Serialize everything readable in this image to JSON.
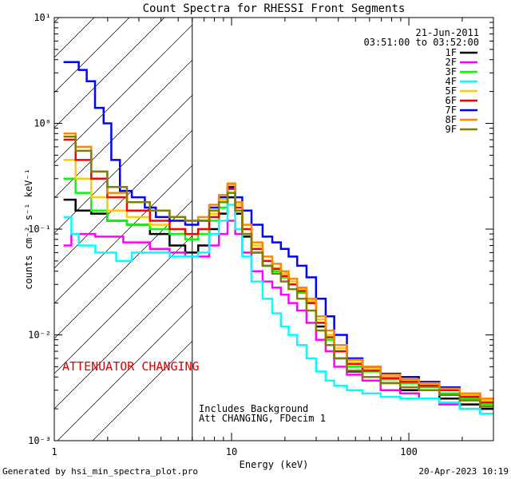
{
  "chart_data": {
    "type": "line",
    "title": "Count Spectra for RHESSI Front Segments",
    "xlabel": "Energy (keV)",
    "ylabel": "counts cm⁻² s⁻¹ keV⁻¹",
    "xscale": "log",
    "yscale": "log",
    "xlim": [
      1,
      300
    ],
    "ylim": [
      0.001,
      10
    ],
    "x_ticks": [
      {
        "value": 1,
        "label": "1"
      },
      {
        "value": 10,
        "label": "10"
      },
      {
        "value": 100,
        "label": "100"
      }
    ],
    "y_ticks": [
      {
        "value": 0.001,
        "label": "10⁻³"
      },
      {
        "value": 0.01,
        "label": "10⁻²"
      },
      {
        "value": 0.1,
        "label": "10⁻¹"
      },
      {
        "value": 1,
        "label": "10⁰"
      },
      {
        "value": 10,
        "label": "10¹"
      }
    ],
    "date": "21-Jun-2011",
    "time_range": "03:51:00 to 03:52:00",
    "attenuator_label": "ATTENUATOR CHANGING",
    "note_lines": [
      "Includes Background",
      "Att CHANGING, FDecim 1"
    ],
    "hatched_region": {
      "x_from": 1,
      "x_to": 6
    },
    "legend_position": "top-right",
    "series": [
      {
        "name": "1F",
        "color": "#000000",
        "points": [
          [
            1.2,
            0.19
          ],
          [
            1.45,
            0.15
          ],
          [
            1.8,
            0.14
          ],
          [
            2.2,
            0.12
          ],
          [
            3,
            0.11
          ],
          [
            4,
            0.09
          ],
          [
            5,
            0.07
          ],
          [
            6,
            0.06
          ],
          [
            7,
            0.07
          ],
          [
            8,
            0.1
          ],
          [
            9,
            0.14
          ],
          [
            10,
            0.2
          ],
          [
            11,
            0.14
          ],
          [
            12,
            0.085
          ],
          [
            14,
            0.06
          ],
          [
            16,
            0.045
          ],
          [
            18,
            0.04
          ],
          [
            20,
            0.035
          ],
          [
            22,
            0.03
          ],
          [
            25,
            0.025
          ],
          [
            28,
            0.02
          ],
          [
            32,
            0.012
          ],
          [
            36,
            0.008
          ],
          [
            40,
            0.006
          ],
          [
            50,
            0.0045
          ],
          [
            60,
            0.004
          ],
          [
            80,
            0.0035
          ],
          [
            100,
            0.003
          ],
          [
            130,
            0.003
          ],
          [
            170,
            0.0025
          ],
          [
            220,
            0.0022
          ],
          [
            290,
            0.002
          ]
        ]
      },
      {
        "name": "2F",
        "color": "#ff00ff",
        "points": [
          [
            1.2,
            0.07
          ],
          [
            1.3,
            0.09
          ],
          [
            1.45,
            0.09
          ],
          [
            2,
            0.085
          ],
          [
            3,
            0.075
          ],
          [
            4,
            0.065
          ],
          [
            5,
            0.06
          ],
          [
            6,
            0.055
          ],
          [
            7,
            0.055
          ],
          [
            8,
            0.07
          ],
          [
            9,
            0.09
          ],
          [
            10,
            0.12
          ],
          [
            11,
            0.09
          ],
          [
            12,
            0.06
          ],
          [
            14,
            0.04
          ],
          [
            16,
            0.032
          ],
          [
            18,
            0.028
          ],
          [
            20,
            0.024
          ],
          [
            22,
            0.02
          ],
          [
            25,
            0.017
          ],
          [
            28,
            0.013
          ],
          [
            32,
            0.009
          ],
          [
            36,
            0.007
          ],
          [
            40,
            0.005
          ],
          [
            50,
            0.0042
          ],
          [
            60,
            0.0037
          ],
          [
            80,
            0.003
          ],
          [
            100,
            0.0028
          ],
          [
            130,
            0.0025
          ],
          [
            170,
            0.0022
          ],
          [
            220,
            0.002
          ],
          [
            290,
            0.0018
          ]
        ]
      },
      {
        "name": "3F",
        "color": "#00ff00",
        "points": [
          [
            1.2,
            0.3
          ],
          [
            1.45,
            0.22
          ],
          [
            1.8,
            0.15
          ],
          [
            2.2,
            0.12
          ],
          [
            3,
            0.11
          ],
          [
            4,
            0.1
          ],
          [
            5,
            0.09
          ],
          [
            6,
            0.08
          ],
          [
            7,
            0.09
          ],
          [
            8,
            0.12
          ],
          [
            9,
            0.16
          ],
          [
            10,
            0.22
          ],
          [
            11,
            0.15
          ],
          [
            12,
            0.09
          ],
          [
            14,
            0.06
          ],
          [
            16,
            0.045
          ],
          [
            18,
            0.04
          ],
          [
            20,
            0.035
          ],
          [
            22,
            0.03
          ],
          [
            25,
            0.025
          ],
          [
            28,
            0.02
          ],
          [
            32,
            0.013
          ],
          [
            36,
            0.009
          ],
          [
            40,
            0.007
          ],
          [
            50,
            0.005
          ],
          [
            60,
            0.0045
          ],
          [
            80,
            0.0038
          ],
          [
            100,
            0.0035
          ],
          [
            130,
            0.0032
          ],
          [
            170,
            0.0028
          ],
          [
            220,
            0.0025
          ],
          [
            290,
            0.0022
          ]
        ]
      },
      {
        "name": "4F",
        "color": "#00ffff",
        "points": [
          [
            1.2,
            0.13
          ],
          [
            1.3,
            0.09
          ],
          [
            1.45,
            0.07
          ],
          [
            2,
            0.06
          ],
          [
            2.5,
            0.05
          ],
          [
            3,
            0.06
          ],
          [
            4,
            0.06
          ],
          [
            5,
            0.055
          ],
          [
            6,
            0.055
          ],
          [
            7,
            0.06
          ],
          [
            8,
            0.09
          ],
          [
            9,
            0.12
          ],
          [
            10,
            0.17
          ],
          [
            11,
            0.1
          ],
          [
            12,
            0.055
          ],
          [
            14,
            0.032
          ],
          [
            16,
            0.022
          ],
          [
            18,
            0.016
          ],
          [
            20,
            0.012
          ],
          [
            22,
            0.01
          ],
          [
            25,
            0.008
          ],
          [
            28,
            0.006
          ],
          [
            32,
            0.0045
          ],
          [
            36,
            0.0037
          ],
          [
            40,
            0.0033
          ],
          [
            50,
            0.003
          ],
          [
            60,
            0.0028
          ],
          [
            80,
            0.0026
          ],
          [
            100,
            0.0025
          ],
          [
            130,
            0.0025
          ],
          [
            170,
            0.0023
          ],
          [
            220,
            0.002
          ],
          [
            290,
            0.0018
          ]
        ]
      },
      {
        "name": "5F",
        "color": "#ffcc00",
        "points": [
          [
            1.2,
            0.45
          ],
          [
            1.45,
            0.3
          ],
          [
            1.8,
            0.2
          ],
          [
            2.2,
            0.15
          ],
          [
            3,
            0.13
          ],
          [
            4,
            0.11
          ],
          [
            5,
            0.1
          ],
          [
            6,
            0.09
          ],
          [
            7,
            0.1
          ],
          [
            8,
            0.14
          ],
          [
            9,
            0.19
          ],
          [
            10,
            0.26
          ],
          [
            11,
            0.17
          ],
          [
            12,
            0.1
          ],
          [
            14,
            0.07
          ],
          [
            16,
            0.05
          ],
          [
            18,
            0.043
          ],
          [
            20,
            0.038
          ],
          [
            22,
            0.032
          ],
          [
            25,
            0.027
          ],
          [
            28,
            0.021
          ],
          [
            32,
            0.014
          ],
          [
            36,
            0.01
          ],
          [
            40,
            0.0075
          ],
          [
            50,
            0.0055
          ],
          [
            60,
            0.0048
          ],
          [
            80,
            0.004
          ],
          [
            100,
            0.0037
          ],
          [
            130,
            0.0034
          ],
          [
            170,
            0.003
          ],
          [
            220,
            0.0027
          ],
          [
            290,
            0.0024
          ]
        ]
      },
      {
        "name": "6F",
        "color": "#ff0000",
        "points": [
          [
            1.2,
            0.7
          ],
          [
            1.45,
            0.45
          ],
          [
            1.8,
            0.3
          ],
          [
            2.2,
            0.2
          ],
          [
            3,
            0.15
          ],
          [
            4,
            0.12
          ],
          [
            5,
            0.1
          ],
          [
            6,
            0.09
          ],
          [
            7,
            0.1
          ],
          [
            8,
            0.13
          ],
          [
            9,
            0.18
          ],
          [
            10,
            0.24
          ],
          [
            11,
            0.16
          ],
          [
            12,
            0.1
          ],
          [
            14,
            0.065
          ],
          [
            16,
            0.05
          ],
          [
            18,
            0.042
          ],
          [
            20,
            0.036
          ],
          [
            22,
            0.03
          ],
          [
            25,
            0.026
          ],
          [
            28,
            0.02
          ],
          [
            32,
            0.013
          ],
          [
            36,
            0.0095
          ],
          [
            40,
            0.007
          ],
          [
            50,
            0.0053
          ],
          [
            60,
            0.0046
          ],
          [
            80,
            0.0039
          ],
          [
            100,
            0.0036
          ],
          [
            130,
            0.0033
          ],
          [
            170,
            0.003
          ],
          [
            220,
            0.0026
          ],
          [
            290,
            0.0023
          ]
        ]
      },
      {
        "name": "7F",
        "color": "#0000ff",
        "points": [
          [
            1.2,
            3.8
          ],
          [
            1.3,
            3.8
          ],
          [
            1.45,
            3.2
          ],
          [
            1.6,
            2.5
          ],
          [
            1.8,
            1.4
          ],
          [
            2,
            1
          ],
          [
            2.2,
            0.45
          ],
          [
            2.5,
            0.23
          ],
          [
            3,
            0.2
          ],
          [
            3.5,
            0.16
          ],
          [
            4,
            0.13
          ],
          [
            5,
            0.12
          ],
          [
            6,
            0.11
          ],
          [
            7,
            0.12
          ],
          [
            8,
            0.16
          ],
          [
            9,
            0.2
          ],
          [
            10,
            0.25
          ],
          [
            11,
            0.2
          ],
          [
            12,
            0.15
          ],
          [
            14,
            0.11
          ],
          [
            16,
            0.085
          ],
          [
            18,
            0.075
          ],
          [
            20,
            0.065
          ],
          [
            22,
            0.055
          ],
          [
            25,
            0.045
          ],
          [
            28,
            0.035
          ],
          [
            32,
            0.022
          ],
          [
            36,
            0.015
          ],
          [
            40,
            0.01
          ],
          [
            50,
            0.006
          ],
          [
            60,
            0.005
          ],
          [
            80,
            0.0043
          ],
          [
            100,
            0.004
          ],
          [
            130,
            0.0036
          ],
          [
            170,
            0.0032
          ],
          [
            220,
            0.0028
          ],
          [
            290,
            0.0025
          ]
        ]
      },
      {
        "name": "8F",
        "color": "#ff8800",
        "points": [
          [
            1.2,
            0.8
          ],
          [
            1.45,
            0.6
          ],
          [
            1.8,
            0.35
          ],
          [
            2.2,
            0.22
          ],
          [
            3,
            0.18
          ],
          [
            4,
            0.15
          ],
          [
            5,
            0.13
          ],
          [
            6,
            0.12
          ],
          [
            7,
            0.13
          ],
          [
            8,
            0.17
          ],
          [
            9,
            0.21
          ],
          [
            10,
            0.27
          ],
          [
            11,
            0.18
          ],
          [
            12,
            0.11
          ],
          [
            14,
            0.075
          ],
          [
            16,
            0.055
          ],
          [
            18,
            0.047
          ],
          [
            20,
            0.04
          ],
          [
            22,
            0.034
          ],
          [
            25,
            0.028
          ],
          [
            28,
            0.022
          ],
          [
            32,
            0.015
          ],
          [
            36,
            0.011
          ],
          [
            40,
            0.008
          ],
          [
            50,
            0.0058
          ],
          [
            60,
            0.005
          ],
          [
            80,
            0.0042
          ],
          [
            100,
            0.0038
          ],
          [
            130,
            0.0035
          ],
          [
            170,
            0.0031
          ],
          [
            220,
            0.0028
          ],
          [
            290,
            0.0025
          ]
        ]
      },
      {
        "name": "9F",
        "color": "#808000",
        "points": [
          [
            1.2,
            0.75
          ],
          [
            1.45,
            0.55
          ],
          [
            1.8,
            0.35
          ],
          [
            2.2,
            0.25
          ],
          [
            3,
            0.18
          ],
          [
            4,
            0.15
          ],
          [
            5,
            0.13
          ],
          [
            6,
            0.12
          ],
          [
            7,
            0.12
          ],
          [
            8,
            0.15
          ],
          [
            9,
            0.18
          ],
          [
            10,
            0.22
          ],
          [
            11,
            0.15
          ],
          [
            12,
            0.09
          ],
          [
            14,
            0.06
          ],
          [
            16,
            0.045
          ],
          [
            18,
            0.038
          ],
          [
            20,
            0.032
          ],
          [
            22,
            0.027
          ],
          [
            25,
            0.022
          ],
          [
            28,
            0.017
          ],
          [
            32,
            0.011
          ],
          [
            36,
            0.008
          ],
          [
            40,
            0.006
          ],
          [
            50,
            0.0046
          ],
          [
            60,
            0.004
          ],
          [
            80,
            0.0035
          ],
          [
            100,
            0.0032
          ],
          [
            130,
            0.003
          ],
          [
            170,
            0.0027
          ],
          [
            220,
            0.0024
          ],
          [
            290,
            0.0021
          ]
        ]
      }
    ]
  },
  "footer": {
    "generator": "Generated by hsi_min_spectra_plot.pro",
    "timestamp": "20-Apr-2023 10:19"
  }
}
